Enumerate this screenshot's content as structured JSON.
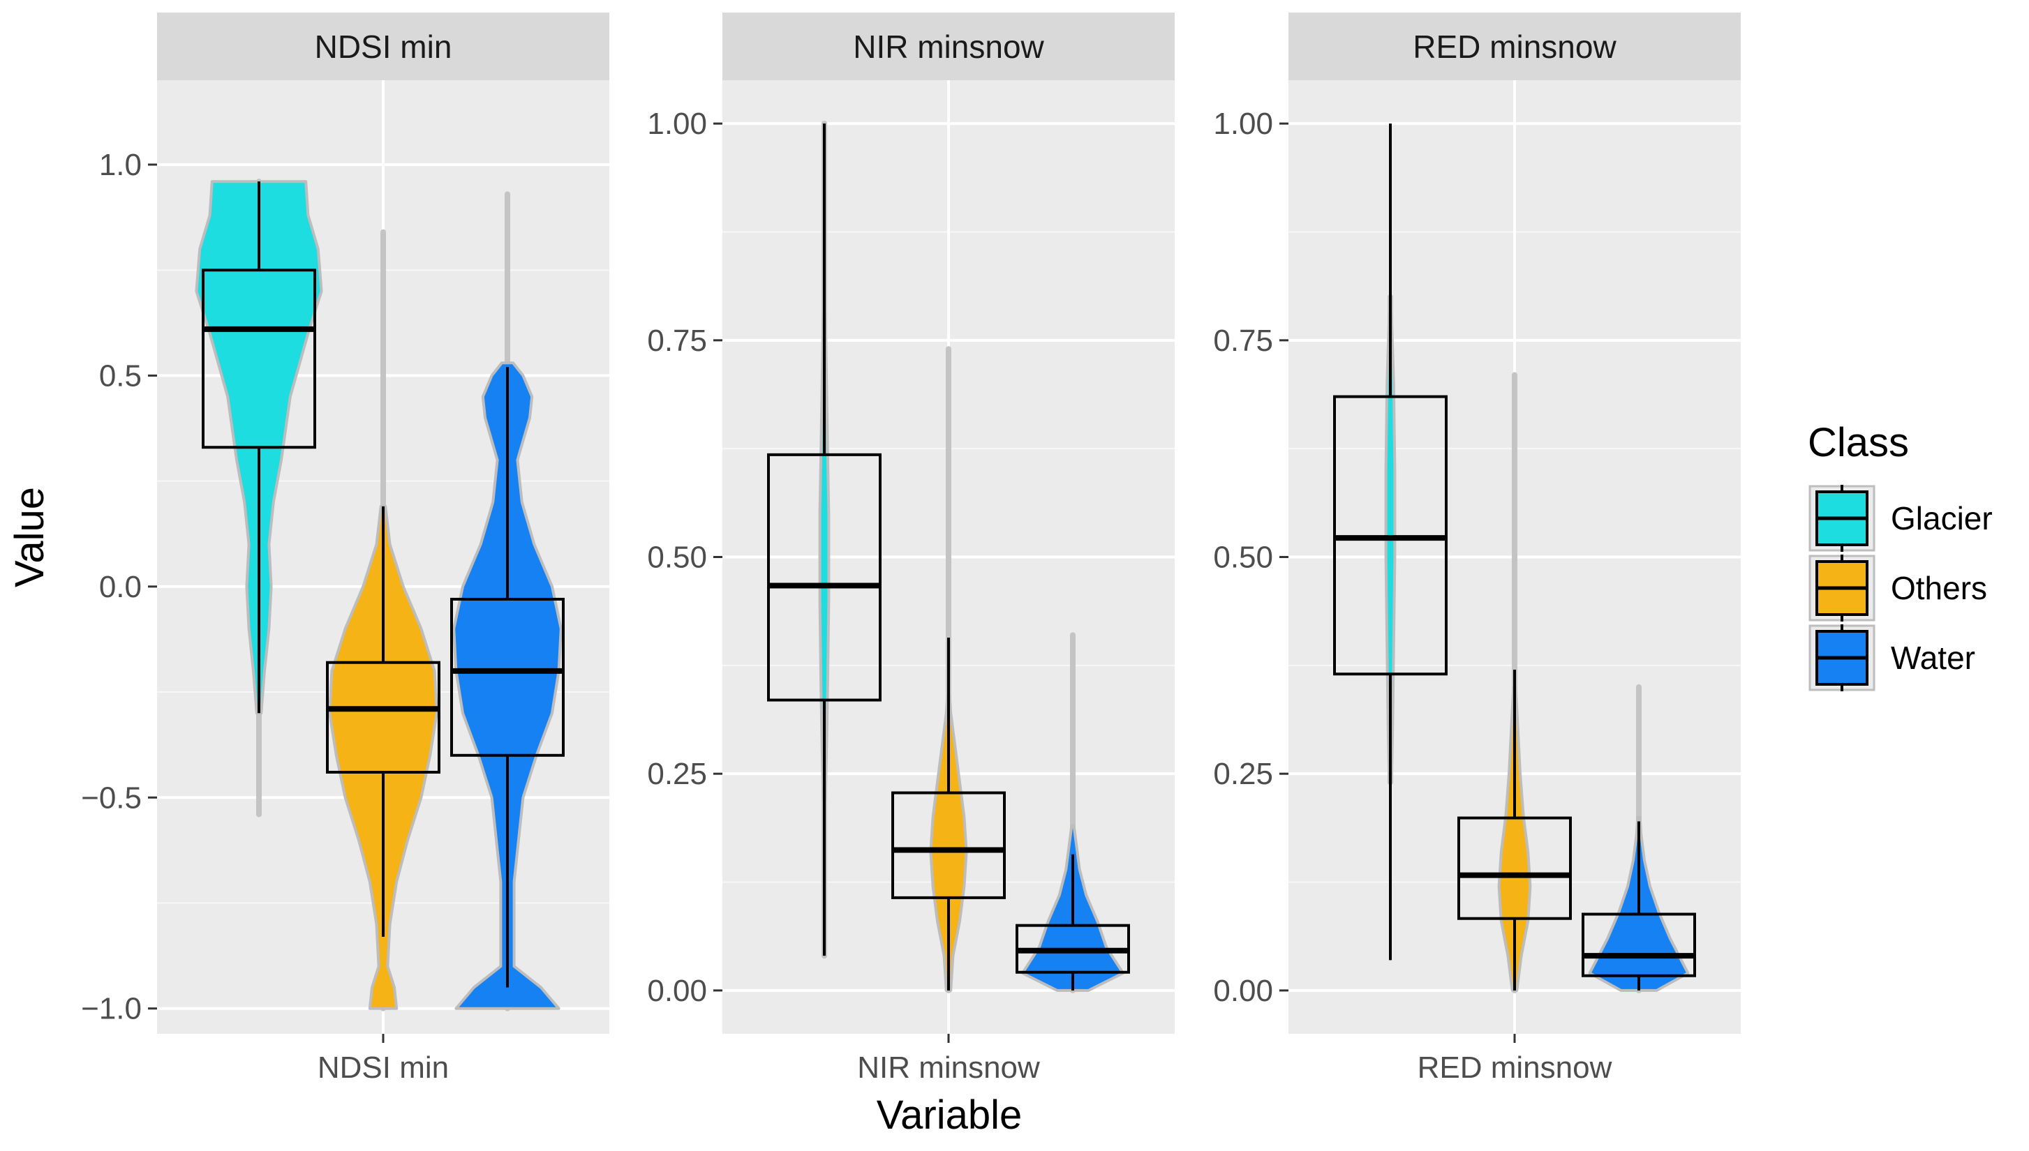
{
  "chart_data": {
    "type": "violin+boxplot",
    "xlabel": "Variable",
    "ylabel": "Value",
    "legend": {
      "title": "Class",
      "position": "right",
      "items": [
        {
          "name": "Glacier",
          "color": "#1ddde0"
        },
        {
          "name": "Others",
          "color": "#f5b316"
        },
        {
          "name": "Water",
          "color": "#1581f2"
        }
      ]
    },
    "grid": true,
    "facets": [
      {
        "strip": "NDSI min",
        "xtick": "NDSI min",
        "ylim": [
          -1.06,
          1.2
        ],
        "yticks": [
          {
            "value": 1.0,
            "label": "1.0"
          },
          {
            "value": 0.5,
            "label": "0.5"
          },
          {
            "value": 0.0,
            "label": "0.0"
          },
          {
            "value": -0.5,
            "label": "−0.5"
          },
          {
            "value": -1.0,
            "label": "−1.0"
          }
        ],
        "boxes": [
          {
            "class": "Glacier",
            "q1": 0.33,
            "median": 0.61,
            "q3": 0.75,
            "whisker_low": -0.3,
            "whisker_high": 0.96
          },
          {
            "class": "Others",
            "q1": -0.44,
            "median": -0.29,
            "q3": -0.18,
            "whisker_low": -0.83,
            "whisker_high": 0.19
          },
          {
            "class": "Water",
            "q1": -0.4,
            "median": -0.2,
            "q3": -0.03,
            "whisker_low": -0.95,
            "whisker_high": 0.52
          }
        ],
        "violins": [
          {
            "class": "Glacier",
            "tail_low": -0.54,
            "tail_high": 0.96,
            "fill_profile": [
              [
                -0.3,
                0.02
              ],
              [
                -0.2,
                0.05
              ],
              [
                -0.1,
                0.09
              ],
              [
                0.0,
                0.11
              ],
              [
                0.1,
                0.09
              ],
              [
                0.2,
                0.13
              ],
              [
                0.3,
                0.2
              ],
              [
                0.45,
                0.28
              ],
              [
                0.6,
                0.44
              ],
              [
                0.7,
                0.56
              ],
              [
                0.8,
                0.53
              ],
              [
                0.88,
                0.44
              ],
              [
                0.96,
                0.42
              ]
            ]
          },
          {
            "class": "Others",
            "tail_low": -1.0,
            "tail_high": 0.84,
            "fill_profile": [
              [
                -1.0,
                0.12
              ],
              [
                -0.95,
                0.1
              ],
              [
                -0.9,
                0.04
              ],
              [
                -0.8,
                0.06
              ],
              [
                -0.7,
                0.12
              ],
              [
                -0.6,
                0.22
              ],
              [
                -0.5,
                0.34
              ],
              [
                -0.4,
                0.42
              ],
              [
                -0.3,
                0.48
              ],
              [
                -0.2,
                0.46
              ],
              [
                -0.1,
                0.34
              ],
              [
                0.0,
                0.18
              ],
              [
                0.1,
                0.06
              ],
              [
                0.19,
                0.02
              ]
            ]
          },
          {
            "class": "Water",
            "tail_low": -1.0,
            "tail_high": 0.93,
            "fill_profile": [
              [
                -1.0,
                0.46
              ],
              [
                -0.95,
                0.3
              ],
              [
                -0.9,
                0.06
              ],
              [
                -0.7,
                0.06
              ],
              [
                -0.5,
                0.14
              ],
              [
                -0.4,
                0.26
              ],
              [
                -0.3,
                0.4
              ],
              [
                -0.2,
                0.46
              ],
              [
                -0.1,
                0.48
              ],
              [
                0.0,
                0.4
              ],
              [
                0.1,
                0.24
              ],
              [
                0.2,
                0.13
              ],
              [
                0.3,
                0.09
              ],
              [
                0.4,
                0.2
              ],
              [
                0.45,
                0.22
              ],
              [
                0.5,
                0.14
              ],
              [
                0.53,
                0.05
              ]
            ]
          }
        ]
      },
      {
        "strip": "NIR minsnow",
        "xtick": "NIR minsnow",
        "ylim": [
          -0.05,
          1.05
        ],
        "yticks": [
          {
            "value": 1.0,
            "label": "1.00"
          },
          {
            "value": 0.75,
            "label": "0.75"
          },
          {
            "value": 0.5,
            "label": "0.50"
          },
          {
            "value": 0.25,
            "label": "0.25"
          },
          {
            "value": 0.0,
            "label": "0.00"
          }
        ],
        "boxes": [
          {
            "class": "Glacier",
            "q1": 0.335,
            "median": 0.467,
            "q3": 0.618,
            "whisker_low": 0.04,
            "whisker_high": 1.0
          },
          {
            "class": "Others",
            "q1": 0.107,
            "median": 0.162,
            "q3": 0.228,
            "whisker_low": 0.0,
            "whisker_high": 0.407
          },
          {
            "class": "Water",
            "q1": 0.021,
            "median": 0.046,
            "q3": 0.075,
            "whisker_low": 0.0,
            "whisker_high": 0.157
          }
        ],
        "violins": [
          {
            "class": "Glacier",
            "tail_low": 0.04,
            "tail_high": 1.0,
            "fill_profile": [
              [
                0.22,
                0.01
              ],
              [
                0.28,
                0.02
              ],
              [
                0.35,
                0.03
              ],
              [
                0.45,
                0.04
              ],
              [
                0.55,
                0.04
              ],
              [
                0.62,
                0.03
              ],
              [
                0.7,
                0.02
              ],
              [
                0.78,
                0.01
              ]
            ]
          },
          {
            "class": "Others",
            "tail_low": 0.0,
            "tail_high": 0.74,
            "fill_profile": [
              [
                0.0,
                0.02
              ],
              [
                0.04,
                0.04
              ],
              [
                0.08,
                0.1
              ],
              [
                0.12,
                0.14
              ],
              [
                0.16,
                0.16
              ],
              [
                0.2,
                0.14
              ],
              [
                0.24,
                0.1
              ],
              [
                0.28,
                0.06
              ],
              [
                0.32,
                0.02
              ],
              [
                0.34,
                0.01
              ]
            ]
          },
          {
            "class": "Water",
            "tail_low": 0.0,
            "tail_high": 0.41,
            "fill_profile": [
              [
                0.0,
                0.14
              ],
              [
                0.02,
                0.45
              ],
              [
                0.03,
                0.4
              ],
              [
                0.05,
                0.3
              ],
              [
                0.08,
                0.22
              ],
              [
                0.11,
                0.12
              ],
              [
                0.14,
                0.06
              ],
              [
                0.17,
                0.03
              ],
              [
                0.19,
                0.01
              ]
            ]
          }
        ]
      },
      {
        "strip": "RED minsnow",
        "xtick": "RED minsnow",
        "ylim": [
          -0.05,
          1.05
        ],
        "yticks": [
          {
            "value": 1.0,
            "label": "1.00"
          },
          {
            "value": 0.75,
            "label": "0.75"
          },
          {
            "value": 0.5,
            "label": "0.50"
          },
          {
            "value": 0.25,
            "label": "0.25"
          },
          {
            "value": 0.0,
            "label": "0.00"
          }
        ],
        "boxes": [
          {
            "class": "Glacier",
            "q1": 0.365,
            "median": 0.522,
            "q3": 0.685,
            "whisker_low": 0.035,
            "whisker_high": 1.0
          },
          {
            "class": "Others",
            "q1": 0.083,
            "median": 0.133,
            "q3": 0.199,
            "whisker_low": 0.0,
            "whisker_high": 0.37
          },
          {
            "class": "Water",
            "q1": 0.017,
            "median": 0.04,
            "q3": 0.088,
            "whisker_low": 0.0,
            "whisker_high": 0.195
          }
        ],
        "violins": [
          {
            "class": "Glacier",
            "tail_low": 0.24,
            "tail_high": 0.8,
            "fill_profile": [
              [
                0.24,
                0.01
              ],
              [
                0.3,
                0.02
              ],
              [
                0.4,
                0.03
              ],
              [
                0.5,
                0.04
              ],
              [
                0.6,
                0.04
              ],
              [
                0.7,
                0.03
              ],
              [
                0.78,
                0.01
              ]
            ]
          },
          {
            "class": "Others",
            "tail_low": 0.0,
            "tail_high": 0.71,
            "fill_profile": [
              [
                0.0,
                0.02
              ],
              [
                0.04,
                0.06
              ],
              [
                0.08,
                0.12
              ],
              [
                0.12,
                0.14
              ],
              [
                0.16,
                0.12
              ],
              [
                0.2,
                0.08
              ],
              [
                0.25,
                0.05
              ],
              [
                0.3,
                0.03
              ],
              [
                0.35,
                0.01
              ]
            ]
          },
          {
            "class": "Water",
            "tail_low": 0.0,
            "tail_high": 0.35,
            "fill_profile": [
              [
                0.0,
                0.16
              ],
              [
                0.02,
                0.44
              ],
              [
                0.035,
                0.38
              ],
              [
                0.06,
                0.28
              ],
              [
                0.09,
                0.18
              ],
              [
                0.12,
                0.1
              ],
              [
                0.15,
                0.05
              ],
              [
                0.18,
                0.02
              ],
              [
                0.2,
                0.01
              ]
            ]
          }
        ]
      }
    ]
  }
}
